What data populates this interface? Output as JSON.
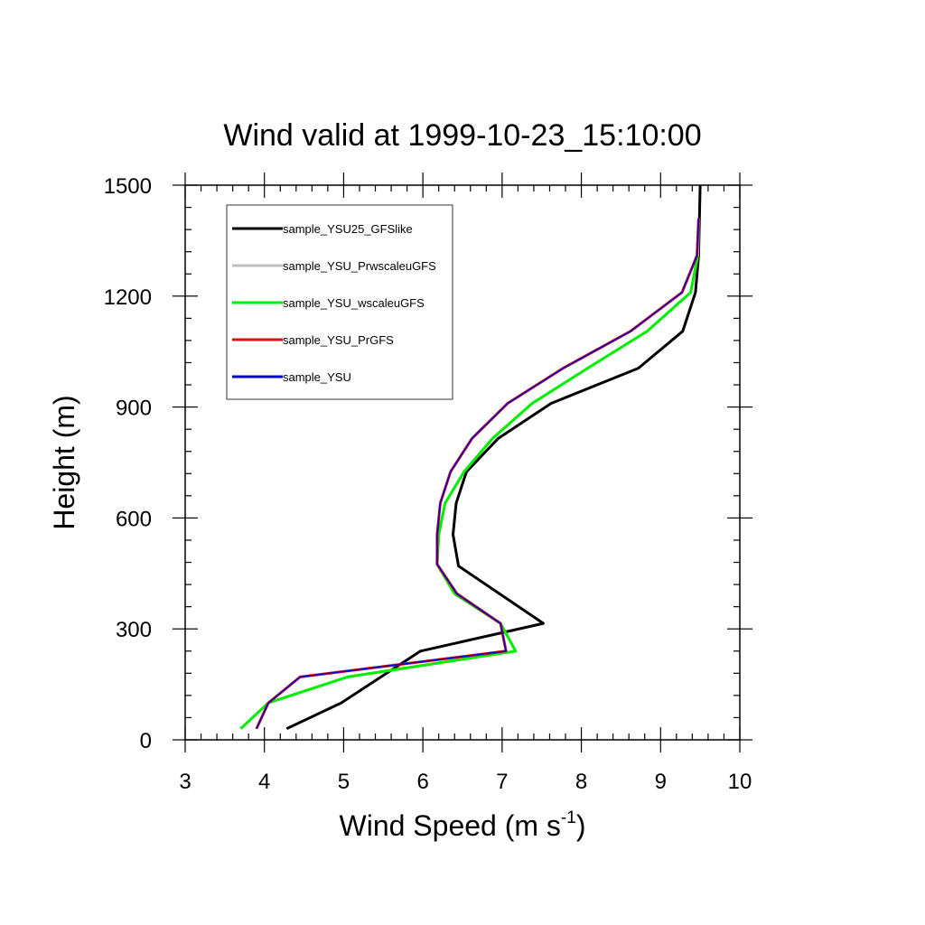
{
  "chart_data": {
    "type": "line",
    "title": "Wind valid at 1999-10-23_15:10:00",
    "xlabel": {
      "main": "Wind Speed (m s",
      "superscript": "-1",
      "suffix": ")"
    },
    "ylabel": "Height (m)",
    "xlim": [
      3,
      10
    ],
    "ylim": [
      0,
      1500
    ],
    "x_ticks": [
      "3",
      "4",
      "5",
      "6",
      "7",
      "8",
      "9",
      "10"
    ],
    "y_ticks": [
      "0",
      "300",
      "600",
      "900",
      "1200",
      "1500"
    ],
    "grid": false,
    "legend_position": "top-left",
    "series": [
      {
        "name": "sample_YSU25_GFSlike",
        "color": "#000000",
        "x": [
          4.28,
          4.97,
          5.97,
          7.52,
          6.45,
          6.38,
          6.42,
          6.55,
          6.95,
          7.62,
          8.72,
          9.28,
          9.44,
          9.48,
          9.49,
          9.5
        ],
        "y": [
          30,
          100,
          240,
          315,
          470,
          555,
          640,
          725,
          815,
          910,
          1005,
          1105,
          1210,
          1310,
          1410,
          1500
        ]
      },
      {
        "name": "sample_YSU_PrwscaleuGFS",
        "color": "#c0c0c0",
        "x": [
          3.7,
          4.05,
          5.05,
          7.17,
          6.98,
          6.4,
          6.18,
          6.2,
          6.28,
          6.52,
          6.88,
          7.38,
          8.08,
          8.83,
          9.38,
          9.47,
          9.48
        ],
        "y": [
          30,
          100,
          170,
          240,
          315,
          395,
          475,
          555,
          640,
          725,
          815,
          910,
          1005,
          1105,
          1210,
          1310,
          1410
        ]
      },
      {
        "name": "sample_YSU_wscaleuGFS",
        "color": "#00ee00",
        "x": [
          3.7,
          4.05,
          5.05,
          7.17,
          6.98,
          6.4,
          6.18,
          6.2,
          6.28,
          6.52,
          6.88,
          7.38,
          8.08,
          8.83,
          9.38,
          9.47
        ],
        "y": [
          30,
          100,
          170,
          240,
          315,
          395,
          475,
          555,
          640,
          725,
          815,
          910,
          1005,
          1105,
          1210,
          1310
        ]
      },
      {
        "name": "sample_YSU_PrGFS",
        "color": "#dd1111",
        "x": [
          3.9,
          4.05,
          4.45,
          7.05,
          6.98,
          6.43,
          6.18,
          6.18,
          6.22,
          6.35,
          6.62,
          7.07,
          7.77,
          8.62,
          9.27,
          9.46,
          9.48
        ],
        "y": [
          30,
          100,
          170,
          240,
          315,
          395,
          475,
          555,
          640,
          725,
          815,
          910,
          1005,
          1105,
          1210,
          1310,
          1410
        ]
      },
      {
        "name": "sample_YSU",
        "color": "#0000cc",
        "x": [
          3.9,
          4.05,
          4.45,
          7.05,
          6.98,
          6.43,
          6.18,
          6.18,
          6.22,
          6.35,
          6.62,
          7.07,
          7.77,
          8.62,
          9.27,
          9.46,
          9.48
        ],
        "y": [
          30,
          100,
          170,
          240,
          315,
          395,
          475,
          555,
          640,
          725,
          815,
          910,
          1005,
          1105,
          1210,
          1310,
          1410
        ]
      }
    ]
  }
}
